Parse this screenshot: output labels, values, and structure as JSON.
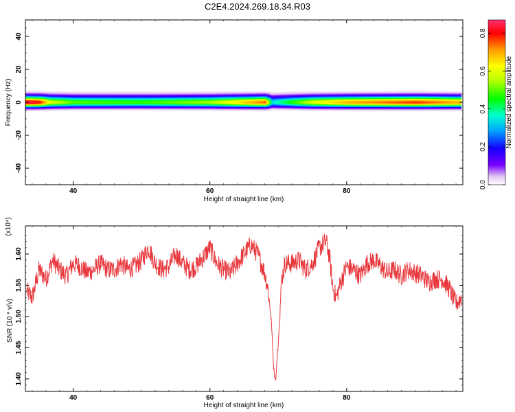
{
  "title": "C2E4.2024.269.18.34.R03",
  "chart_data": [
    {
      "type": "heatmap",
      "xlabel": "Height of straight line (km)",
      "ylabel": "Frequency (Hz)",
      "xlim": [
        33,
        97
      ],
      "ylim": [
        -50,
        50
      ],
      "xticks": [
        40,
        60,
        80
      ],
      "yticks": [
        40,
        20,
        0,
        -20,
        -40
      ],
      "colorbar": {
        "label": "Normalized spectral amplitude",
        "range": [
          0,
          0.87
        ],
        "ticks": [
          "0.0",
          "0.2",
          "0.4",
          "0.6",
          "0.8"
        ]
      },
      "band": {
        "center_freq_hz": 0,
        "halfwidth_hz": [
          4,
          3
        ],
        "core_by_height": [
          {
            "x": 33.5,
            "v": 0.85
          },
          {
            "x": 35,
            "v": 0.8
          },
          {
            "x": 36.5,
            "v": 0.6
          },
          {
            "x": 40,
            "v": 0.5
          },
          {
            "x": 50,
            "v": 0.48
          },
          {
            "x": 60,
            "v": 0.55
          },
          {
            "x": 68,
            "v": 0.75
          },
          {
            "x": 69,
            "v": 0.35
          },
          {
            "x": 75,
            "v": 0.6
          },
          {
            "x": 80,
            "v": 0.7
          },
          {
            "x": 90,
            "v": 0.78
          },
          {
            "x": 96,
            "v": 0.7
          }
        ]
      }
    },
    {
      "type": "line",
      "xlabel": "Height of straight line (km)",
      "ylabel": "SNR (10 * v/v)",
      "yscale_note": "(x10⁴)",
      "xlim": [
        33,
        97
      ],
      "ylim": [
        1.38,
        1.645
      ],
      "xticks": [
        40,
        60,
        80
      ],
      "yticks": [
        "1.60",
        "1.55",
        "1.50",
        "1.45",
        "1.40"
      ],
      "series": [
        {
          "color": "#e8383d",
          "x": [
            33.2,
            34,
            35,
            36,
            37,
            38,
            39,
            40,
            41,
            42,
            43,
            44,
            45,
            46,
            47,
            48,
            49,
            50,
            51,
            52,
            53,
            54,
            55,
            56,
            57,
            58,
            59,
            60,
            61,
            62,
            63,
            64,
            65,
            66,
            67,
            68,
            68.5,
            69,
            69.3,
            69.6,
            70,
            70.5,
            71,
            72,
            73,
            74,
            75,
            76,
            77,
            77.5,
            78,
            78.5,
            79,
            80,
            81,
            82,
            83,
            84,
            85,
            86,
            87,
            88,
            89,
            90,
            91,
            92,
            93,
            94,
            95,
            96,
            96.8
          ],
          "y": [
            1.54,
            1.53,
            1.575,
            1.56,
            1.59,
            1.575,
            1.565,
            1.585,
            1.58,
            1.57,
            1.575,
            1.585,
            1.575,
            1.575,
            1.585,
            1.575,
            1.58,
            1.59,
            1.61,
            1.585,
            1.575,
            1.58,
            1.6,
            1.585,
            1.575,
            1.58,
            1.595,
            1.61,
            1.585,
            1.575,
            1.57,
            1.585,
            1.6,
            1.615,
            1.6,
            1.57,
            1.545,
            1.49,
            1.42,
            1.395,
            1.46,
            1.56,
            1.585,
            1.585,
            1.59,
            1.575,
            1.585,
            1.61,
            1.62,
            1.595,
            1.545,
            1.53,
            1.55,
            1.58,
            1.575,
            1.565,
            1.585,
            1.59,
            1.58,
            1.57,
            1.575,
            1.565,
            1.575,
            1.57,
            1.565,
            1.555,
            1.56,
            1.56,
            1.545,
            1.52,
            1.53
          ]
        }
      ]
    }
  ]
}
